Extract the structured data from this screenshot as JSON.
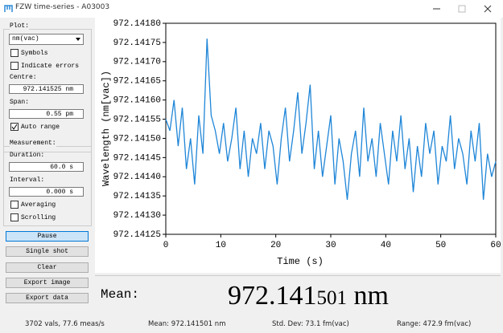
{
  "window": {
    "title": "FZW time-series - A03003"
  },
  "panel": {
    "plot_label": "Plot:",
    "unit_select": "nm(vac)",
    "symbols": "Symbols",
    "indicate_errors": "Indicate errors",
    "centre_label": "Centre:",
    "centre_value": "972.141525 nm",
    "span_label": "Span:",
    "span_value": "0.55 pm",
    "auto_range": "Auto range",
    "measurement_label": "Measurement:",
    "duration_label": "Duration:",
    "duration_value": "60.0 s",
    "interval_label": "Interval:",
    "interval_value": "0.000 s",
    "averaging": "Averaging",
    "scrolling": "Scrolling",
    "buttons": [
      "Pause",
      "Single shot",
      "Clear",
      "Export image",
      "Export data"
    ]
  },
  "chart_data": {
    "type": "line",
    "x_label": "Time (s)",
    "y_label": "Wavelength (nm[vac])",
    "x": [
      0,
      0.75,
      1.5,
      2.25,
      3,
      3.75,
      4.5,
      5.25,
      6,
      6.75,
      7.5,
      8.25,
      9,
      9.75,
      10.5,
      11.25,
      12,
      12.75,
      13.5,
      14.25,
      15,
      15.75,
      16.5,
      17.25,
      18,
      18.75,
      19.5,
      20.25,
      21,
      21.75,
      22.5,
      23.25,
      24,
      24.75,
      25.5,
      26.25,
      27,
      27.75,
      28.5,
      29.25,
      30,
      30.75,
      31.5,
      32.25,
      33,
      33.75,
      34.5,
      35.25,
      36,
      36.75,
      37.5,
      38.25,
      39,
      39.75,
      40.5,
      41.25,
      42,
      42.75,
      43.5,
      44.25,
      45,
      45.75,
      46.5,
      47.25,
      48,
      48.75,
      49.5,
      50.25,
      51,
      51.75,
      52.5,
      53.25,
      54,
      54.75,
      55.5,
      56.25,
      57,
      57.75,
      58.5,
      59.25,
      60
    ],
    "series": [
      {
        "name": "wavelength",
        "color": "#1f86d8",
        "values": [
          972.14155,
          972.14152,
          972.1416,
          972.14148,
          972.14158,
          972.14142,
          972.1415,
          972.14138,
          972.14156,
          972.14146,
          972.14176,
          972.14156,
          972.14152,
          972.14146,
          972.14154,
          972.14144,
          972.1415,
          972.14158,
          972.14142,
          972.14152,
          972.1414,
          972.1415,
          972.14146,
          972.14154,
          972.14142,
          972.14152,
          972.14148,
          972.14138,
          972.1415,
          972.14158,
          972.14144,
          972.14152,
          972.14162,
          972.14146,
          972.14154,
          972.14164,
          972.14142,
          972.14152,
          972.1414,
          972.14148,
          972.14156,
          972.14138,
          972.1415,
          972.14144,
          972.14134,
          972.14146,
          972.14152,
          972.1414,
          972.14158,
          972.14144,
          972.1415,
          972.1414,
          972.14154,
          972.14146,
          972.14138,
          972.14152,
          972.14144,
          972.14156,
          972.14142,
          972.1415,
          972.14136,
          972.14148,
          972.1414,
          972.14154,
          972.14146,
          972.14152,
          972.14138,
          972.14148,
          972.14144,
          972.14156,
          972.14142,
          972.1415,
          972.14146,
          972.14138,
          972.14152,
          972.14144,
          972.14154,
          972.14134,
          972.14146,
          972.1414,
          972.14144
        ]
      }
    ],
    "xlim": [
      0,
      60
    ],
    "xticks": [
      0,
      10,
      20,
      30,
      40,
      50,
      60
    ],
    "ylim": [
      972.14125,
      972.1418
    ],
    "yticks": [
      {
        "value": 972.14125,
        "label": "972.14125"
      },
      {
        "value": 972.1413,
        "label": "972.14130"
      },
      {
        "value": 972.14135,
        "label": "972.14135"
      },
      {
        "value": 972.1414,
        "label": "972.14140"
      },
      {
        "value": 972.14145,
        "label": "972.14145"
      },
      {
        "value": 972.1415,
        "label": "972.14150"
      },
      {
        "value": 972.14155,
        "label": "972.14155"
      },
      {
        "value": 972.1416,
        "label": "972.14160"
      },
      {
        "value": 972.14165,
        "label": "972.14165"
      },
      {
        "value": 972.1417,
        "label": "972.14170"
      },
      {
        "value": 972.14175,
        "label": "972.14175"
      },
      {
        "value": 972.1418,
        "label": "972.14180"
      }
    ],
    "grid": false
  },
  "mean_display": {
    "label": "Mean:",
    "value_main": "972.141",
    "value_small": "501",
    "unit": "nm"
  },
  "status_bar": [
    "3702 vals, 77.6 meas/s",
    "Mean: 972.141501 nm",
    "Std. Dev: 73.1 fm(vac)",
    "Range: 472.9 fm(vac)"
  ]
}
